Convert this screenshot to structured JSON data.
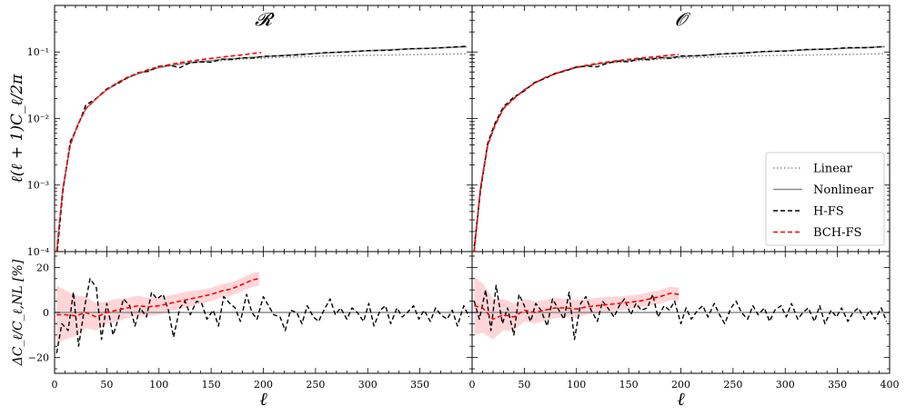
{
  "chart_data": {
    "type": "line",
    "x_axis": {
      "label": "ℓ",
      "lim": [
        0,
        400
      ],
      "ticks": [
        0,
        50,
        100,
        150,
        200,
        250,
        300,
        350,
        400
      ]
    },
    "top": {
      "ylabel": "ℓ(ℓ + 1)C_ℓ/2π",
      "yscale": "log",
      "ylim": [
        0.0001,
        0.5
      ],
      "yticks": [
        0.0001,
        0.001,
        0.01,
        0.1
      ],
      "ytick_labels": [
        "10⁻⁴",
        "10⁻³",
        "10⁻²",
        "10⁻¹"
      ]
    },
    "bottom": {
      "ylabel": "ΔC_ℓ/C_ℓ,NL [%]",
      "ylim": [
        -27,
        27
      ],
      "yticks": [
        -20,
        0,
        20
      ],
      "ytick_labels": [
        "−20",
        "0",
        "20"
      ]
    },
    "legend": {
      "placement": "lower-right",
      "entries": [
        {
          "label": "Linear",
          "color": "#8c8c8c",
          "style": "dotted"
        },
        {
          "label": "Nonlinear",
          "color": "#8c8c8c",
          "style": "solid"
        },
        {
          "label": "H-FS",
          "color": "#000000",
          "style": "dashed"
        },
        {
          "label": "BCH-FS",
          "color": "#ff0000",
          "style": "dashed"
        }
      ]
    },
    "panels": [
      {
        "title": "𝓡",
        "show_xtick_last": false,
        "show_ylabels": true,
        "spectra": {
          "x": [
            2,
            8,
            15,
            22,
            30,
            40,
            50,
            60,
            70,
            80,
            90,
            100,
            110,
            120,
            130,
            140,
            150,
            160,
            170,
            180,
            190,
            200,
            220,
            240,
            260,
            280,
            300,
            320,
            340,
            360,
            380,
            395
          ],
          "linear": [
            0.0001,
            0.0009,
            0.004,
            0.008,
            0.014,
            0.02,
            0.027,
            0.034,
            0.041,
            0.047,
            0.053,
            0.058,
            0.062,
            0.065,
            0.068,
            0.07,
            0.072,
            0.074,
            0.076,
            0.078,
            0.08,
            0.081,
            0.083,
            0.085,
            0.087,
            0.088,
            0.089,
            0.09,
            0.091,
            0.092,
            0.093,
            0.094
          ],
          "nonlinear": [
            0.0001,
            0.0009,
            0.004,
            0.008,
            0.014,
            0.02,
            0.027,
            0.034,
            0.041,
            0.047,
            0.053,
            0.058,
            0.062,
            0.066,
            0.069,
            0.072,
            0.074,
            0.077,
            0.079,
            0.081,
            0.083,
            0.085,
            0.089,
            0.093,
            0.097,
            0.101,
            0.104,
            0.108,
            0.111,
            0.114,
            0.117,
            0.12
          ],
          "h_fs": [
            8e-05,
            0.0008,
            0.0045,
            0.0075,
            0.016,
            0.02,
            0.028,
            0.033,
            0.041,
            0.049,
            0.051,
            0.061,
            0.063,
            0.058,
            0.069,
            0.071,
            0.07,
            0.078,
            0.077,
            0.082,
            0.081,
            0.086,
            0.088,
            0.092,
            0.098,
            0.1,
            0.105,
            0.106,
            0.112,
            0.113,
            0.118,
            0.122
          ],
          "bch_fs_x": [
            2,
            8,
            15,
            22,
            30,
            40,
            50,
            60,
            70,
            80,
            90,
            100,
            110,
            120,
            130,
            140,
            150,
            160,
            170,
            180,
            190,
            198
          ],
          "bch_fs": [
            0.0001,
            0.0009,
            0.004,
            0.0078,
            0.0142,
            0.02,
            0.0272,
            0.0345,
            0.0418,
            0.048,
            0.0545,
            0.06,
            0.0645,
            0.069,
            0.0725,
            0.0765,
            0.08,
            0.0835,
            0.087,
            0.0905,
            0.095,
            0.098
          ]
        },
        "residuals": {
          "h_fs_x": [
            2,
            7,
            13,
            18,
            23,
            29,
            34,
            40,
            45,
            50,
            56,
            61,
            66,
            72,
            77,
            82,
            88,
            93,
            98,
            104,
            109,
            114,
            120,
            125,
            130,
            136,
            141,
            146,
            152,
            157,
            162,
            168,
            173,
            178,
            184,
            189,
            194,
            200,
            205,
            210,
            216,
            221,
            226,
            232,
            237,
            242,
            248,
            253,
            258,
            264,
            269,
            274,
            280,
            285,
            290,
            296,
            301,
            306,
            312,
            317,
            322,
            328,
            333,
            338,
            344,
            349,
            354,
            360,
            365,
            370,
            376,
            381,
            386,
            392,
            397
          ],
          "h_fs": [
            -18,
            -5,
            -8,
            9,
            -15,
            3,
            15,
            11,
            -12,
            4,
            -10,
            -3,
            6,
            3,
            -6,
            2,
            -2,
            9,
            6,
            8,
            1,
            -11,
            2,
            5,
            -1,
            5,
            4,
            -3,
            1,
            -6,
            7,
            4,
            2,
            -4,
            8,
            0,
            -3,
            7,
            3,
            -1,
            -2,
            -8,
            1,
            0,
            -5,
            3,
            -2,
            -4,
            1,
            6,
            -1,
            2,
            -3,
            2,
            0,
            -4,
            4,
            -6,
            1,
            3,
            -5,
            2,
            -2,
            0,
            3,
            -3,
            1,
            -4,
            2,
            -1,
            -3,
            1,
            -6,
            3,
            -2
          ],
          "bch_fs_x": [
            2,
            10,
            20,
            30,
            40,
            50,
            60,
            70,
            80,
            90,
            100,
            110,
            120,
            130,
            140,
            150,
            160,
            170,
            180,
            190,
            196
          ],
          "bch_fs": [
            -1,
            -1,
            -1.5,
            0,
            -2,
            0,
            1,
            2,
            3,
            2.5,
            3,
            4,
            5,
            6,
            7,
            8,
            9.5,
            10.5,
            12.5,
            14.5,
            15
          ],
          "bch_fs_band": [
            13,
            11,
            9,
            7,
            6,
            5,
            5,
            4.5,
            4.5,
            4,
            4,
            3.5,
            3.5,
            3.5,
            3,
            3,
            3,
            3,
            3,
            3,
            3
          ]
        }
      },
      {
        "title": "𝓞",
        "show_xtick_last": true,
        "show_ylabels": false,
        "spectra": {
          "x": [
            2,
            8,
            15,
            22,
            30,
            40,
            50,
            60,
            70,
            80,
            90,
            100,
            110,
            120,
            130,
            140,
            150,
            160,
            170,
            180,
            190,
            200,
            220,
            240,
            260,
            280,
            300,
            320,
            340,
            360,
            380,
            395
          ],
          "linear": [
            0.0001,
            0.0009,
            0.004,
            0.008,
            0.014,
            0.02,
            0.027,
            0.034,
            0.041,
            0.047,
            0.053,
            0.058,
            0.062,
            0.065,
            0.068,
            0.07,
            0.072,
            0.074,
            0.076,
            0.078,
            0.08,
            0.081,
            0.083,
            0.085,
            0.087,
            0.088,
            0.089,
            0.09,
            0.091,
            0.092,
            0.093,
            0.094
          ],
          "nonlinear": [
            0.0001,
            0.0009,
            0.004,
            0.008,
            0.014,
            0.02,
            0.027,
            0.034,
            0.041,
            0.047,
            0.053,
            0.058,
            0.062,
            0.066,
            0.069,
            0.072,
            0.074,
            0.077,
            0.079,
            0.081,
            0.083,
            0.085,
            0.089,
            0.093,
            0.097,
            0.101,
            0.104,
            0.108,
            0.111,
            0.114,
            0.117,
            0.12
          ],
          "h_fs": [
            0.00012,
            0.0008,
            0.0043,
            0.0085,
            0.015,
            0.021,
            0.026,
            0.035,
            0.04,
            0.048,
            0.052,
            0.06,
            0.061,
            0.06,
            0.068,
            0.073,
            0.071,
            0.079,
            0.076,
            0.083,
            0.08,
            0.087,
            0.088,
            0.094,
            0.096,
            0.102,
            0.103,
            0.109,
            0.11,
            0.116,
            0.116,
            0.121
          ],
          "bch_fs_x": [
            2,
            8,
            15,
            22,
            30,
            40,
            50,
            60,
            70,
            80,
            90,
            100,
            110,
            120,
            130,
            140,
            150,
            160,
            170,
            180,
            190,
            198
          ],
          "bch_fs": [
            0.0001,
            0.0009,
            0.004,
            0.0079,
            0.0141,
            0.0198,
            0.027,
            0.034,
            0.0412,
            0.0474,
            0.0535,
            0.059,
            0.0632,
            0.0674,
            0.0708,
            0.0741,
            0.0772,
            0.0805,
            0.083,
            0.086,
            0.0895,
            0.092
          ]
        },
        "residuals": {
          "h_fs_x": [
            2,
            7,
            13,
            18,
            23,
            29,
            34,
            40,
            45,
            50,
            56,
            61,
            66,
            72,
            77,
            82,
            88,
            93,
            98,
            104,
            109,
            114,
            120,
            125,
            130,
            136,
            141,
            146,
            152,
            157,
            162,
            168,
            173,
            178,
            184,
            189,
            194,
            200,
            205,
            210,
            216,
            221,
            226,
            232,
            237,
            242,
            248,
            253,
            258,
            264,
            269,
            274,
            280,
            285,
            290,
            296,
            301,
            306,
            312,
            317,
            322,
            328,
            333,
            338,
            344,
            349,
            354,
            360,
            365,
            370,
            376,
            381,
            386,
            392,
            397
          ],
          "h_fs": [
            5,
            -3,
            10,
            -8,
            12,
            -5,
            2,
            -10,
            8,
            3,
            -4,
            4,
            1,
            -6,
            6,
            2,
            -3,
            9,
            -12,
            4,
            7,
            1,
            -4,
            5,
            2,
            -2,
            3,
            6,
            -1,
            4,
            1,
            2,
            8,
            -2,
            3,
            1,
            5,
            -5,
            2,
            -3,
            1,
            3,
            -2,
            4,
            -1,
            -5,
            2,
            5,
            0,
            -3,
            3,
            -1,
            2,
            -4,
            1,
            3,
            -2,
            4,
            -3,
            0,
            2,
            -4,
            3,
            -5,
            1,
            -2,
            2,
            -4,
            0,
            2,
            -3,
            1,
            -3,
            2,
            -4
          ],
          "bch_fs_x": [
            2,
            10,
            20,
            30,
            40,
            50,
            60,
            70,
            80,
            90,
            100,
            110,
            120,
            130,
            140,
            150,
            160,
            170,
            180,
            190,
            198
          ],
          "bch_fs": [
            3,
            2,
            -3,
            -1,
            -2,
            1,
            0,
            1,
            2,
            2,
            1.5,
            2.5,
            3,
            3.5,
            4,
            4.5,
            5,
            6,
            7,
            8.5,
            8
          ],
          "bch_fs_band": [
            13,
            11,
            9,
            7,
            6,
            5,
            5,
            4.5,
            4.5,
            4,
            4,
            3.5,
            3.5,
            3.5,
            3,
            3,
            3,
            3,
            3,
            3,
            3
          ]
        }
      }
    ]
  }
}
